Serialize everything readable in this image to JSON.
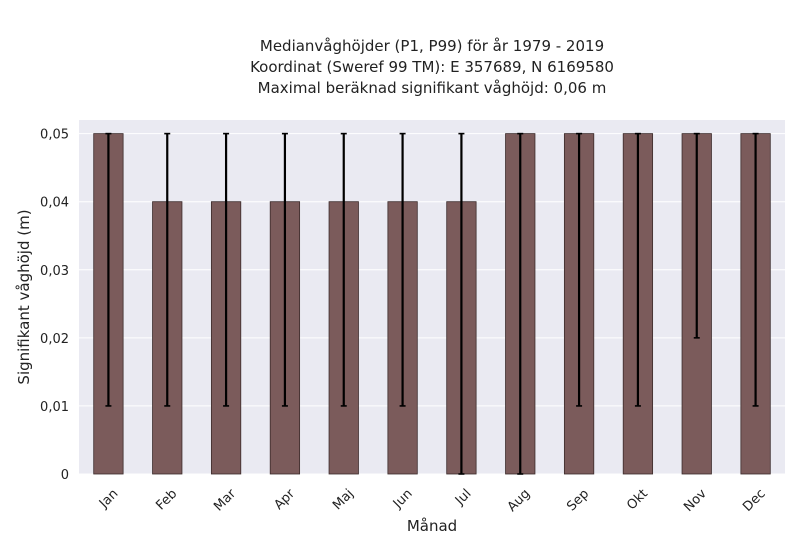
{
  "chart_data": {
    "type": "bar",
    "title_lines": [
      "Medianvåghöjder (P1, P99) för år 1979 - 2019",
      "Koordinat (Sweref 99 TM): E 357689, N 6169580",
      "Maximal beräknad signifikant våghöjd: 0,06 m"
    ],
    "xlabel": "Månad",
    "ylabel": "Signifikant våghöjd (m)",
    "categories": [
      "Jan",
      "Feb",
      "Mar",
      "Apr",
      "Maj",
      "Jun",
      "Jul",
      "Aug",
      "Sep",
      "Okt",
      "Nov",
      "Dec"
    ],
    "values": [
      0.05,
      0.04,
      0.04,
      0.04,
      0.04,
      0.04,
      0.04,
      0.05,
      0.05,
      0.05,
      0.05,
      0.05
    ],
    "p1": [
      0.01,
      0.01,
      0.01,
      0.01,
      0.01,
      0.01,
      0.0,
      0.0,
      0.01,
      0.01,
      0.02,
      0.01
    ],
    "p99": [
      0.05,
      0.05,
      0.05,
      0.05,
      0.05,
      0.05,
      0.05,
      0.05,
      0.05,
      0.05,
      0.05,
      0.05
    ],
    "ylim": [
      0,
      0.052
    ],
    "yticks": [
      0,
      0.01,
      0.02,
      0.03,
      0.04,
      0.05
    ],
    "ytick_labels": [
      "0",
      "0,01",
      "0,02",
      "0,03",
      "0,04",
      "0,05"
    ],
    "grid": true,
    "colors": {
      "bar": "#7b5b5b",
      "bar_edge": "#3b2a2a",
      "error_bar": "#000000",
      "plot_background": "#eaeaf2",
      "grid": "#ffffff"
    }
  }
}
